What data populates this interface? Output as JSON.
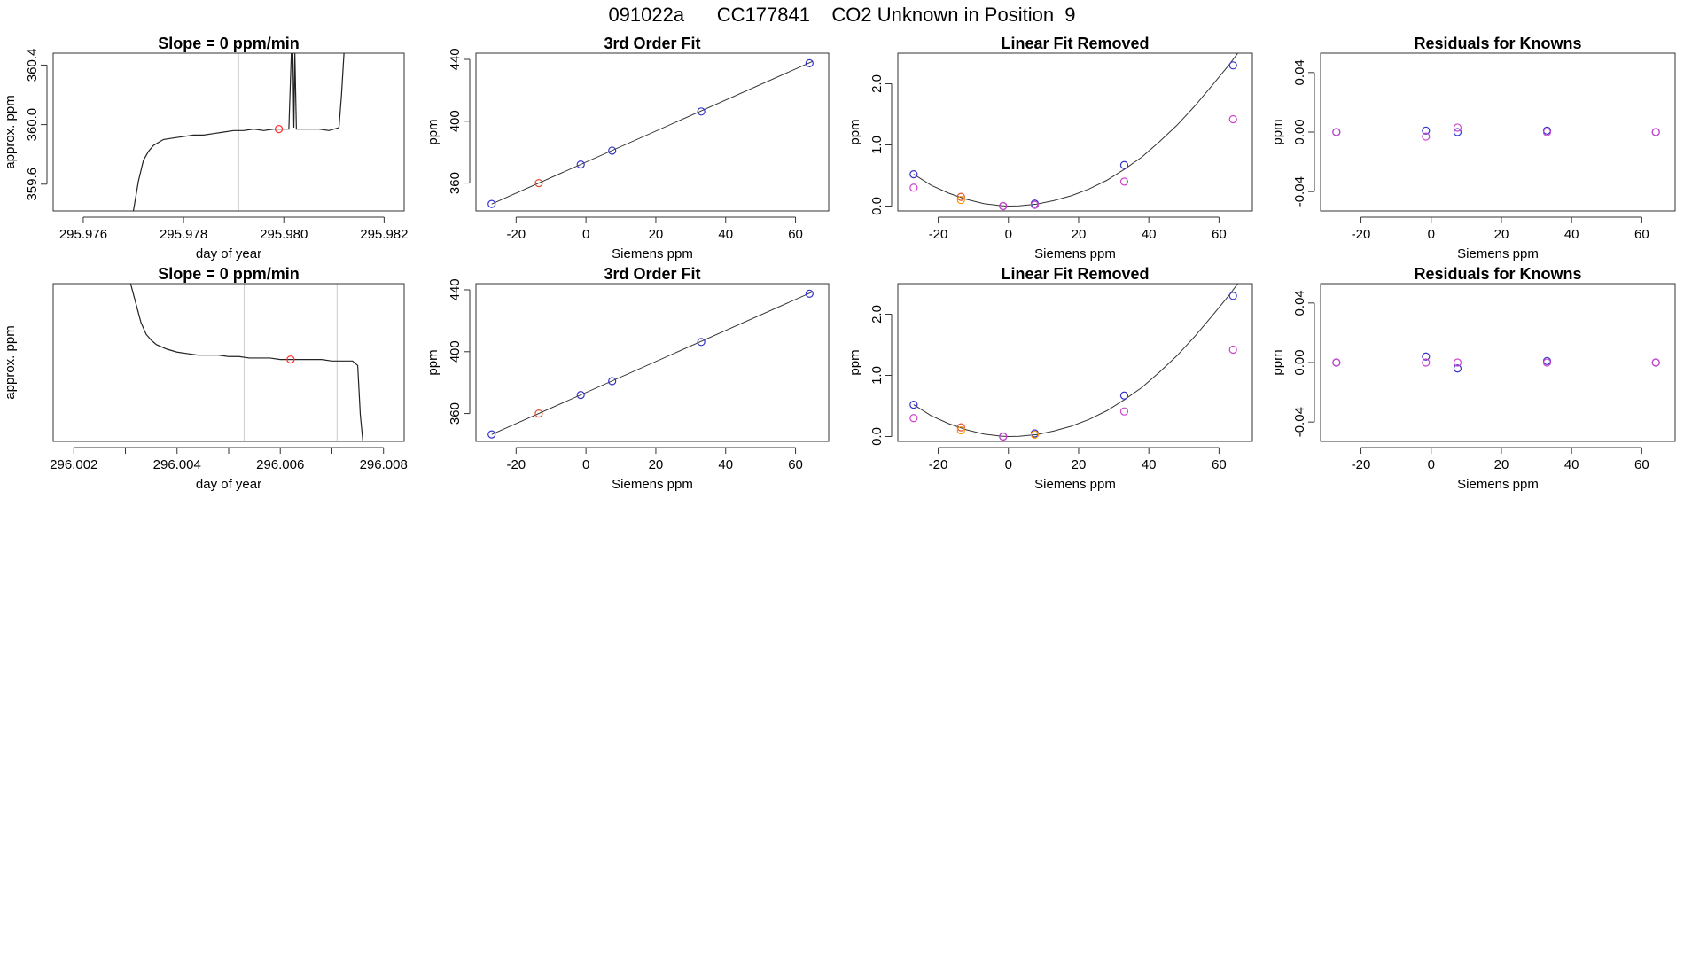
{
  "page": {
    "title": "091022a      CC177841    CO2 Unknown in Position  9"
  },
  "chart_data": [
    {
      "panel": "row1-time",
      "type": "line",
      "title": "Slope =  0  ppm/min",
      "xlabel": "day of year",
      "ylabel": "approx. ppm",
      "xlim": [
        295.9754,
        295.9824
      ],
      "ylim": [
        359.42,
        360.48
      ],
      "xticks": [
        295.976,
        295.978,
        295.98,
        295.982
      ],
      "xtick_labels": [
        "295.976",
        "295.978",
        "295.980",
        "295.982"
      ],
      "yticks": [
        359.6,
        360.0,
        360.4
      ],
      "ytick_labels": [
        "359.6",
        "360.0",
        "360.4"
      ],
      "vlines": [
        295.9791,
        295.9808
      ],
      "marker": {
        "x": 295.9799,
        "y": 359.97,
        "color": "#ff3333"
      },
      "trace": {
        "x": [
          295.977,
          295.9771,
          295.9772,
          295.9773,
          295.9774,
          295.9775,
          295.9776,
          295.9778,
          295.978,
          295.9782,
          295.9784,
          295.9786,
          295.9788,
          295.979,
          295.9792,
          295.9794,
          295.9796,
          295.9798,
          295.98,
          295.9801,
          295.98015,
          295.98018,
          295.9802,
          295.98022,
          295.98025,
          295.9803,
          295.9805,
          295.9807,
          295.9809,
          295.981,
          295.9811,
          295.98115,
          295.9812
        ],
        "y": [
          359.42,
          359.62,
          359.76,
          359.82,
          359.86,
          359.88,
          359.9,
          359.91,
          359.92,
          359.93,
          359.93,
          359.94,
          359.95,
          359.96,
          359.96,
          359.97,
          359.96,
          359.97,
          359.97,
          359.97,
          360.48,
          360.48,
          359.98,
          360.48,
          359.97,
          359.97,
          359.97,
          359.97,
          359.96,
          359.97,
          359.98,
          360.2,
          360.48
        ]
      }
    },
    {
      "panel": "row1-fit",
      "type": "scatter",
      "title": "3rd Order Fit",
      "xlabel": "Siemens ppm",
      "ylabel": "ppm",
      "xlim": [
        -31.5,
        69.5
      ],
      "ylim": [
        342,
        444
      ],
      "xticks": [
        -20,
        0,
        20,
        40,
        60
      ],
      "xtick_labels": [
        "-20",
        "0",
        "20",
        "40",
        "60"
      ],
      "yticks": [
        360,
        400,
        440
      ],
      "ytick_labels": [
        "360",
        "400",
        "440"
      ],
      "fit_line": {
        "x": [
          -27,
          65
        ],
        "y": [
          346.5,
          438.8
        ]
      },
      "points": [
        {
          "x": -27,
          "y": 346.5,
          "color": "#3333cc"
        },
        {
          "x": -13.5,
          "y": 360.0,
          "color": "#e05030"
        },
        {
          "x": -1.5,
          "y": 372.0,
          "color": "#3333cc"
        },
        {
          "x": 7.5,
          "y": 381.0,
          "color": "#3333cc"
        },
        {
          "x": 33,
          "y": 406.3,
          "color": "#3333cc"
        },
        {
          "x": 64,
          "y": 437.5,
          "color": "#3333cc"
        }
      ]
    },
    {
      "panel": "row1-linear-removed",
      "type": "scatter",
      "title": "Linear Fit Removed",
      "xlabel": "Siemens ppm",
      "ylabel": "ppm",
      "xlim": [
        -31.5,
        69.5
      ],
      "ylim": [
        -0.08,
        2.5
      ],
      "xticks": [
        -20,
        0,
        20,
        40,
        60
      ],
      "xtick_labels": [
        "-20",
        "0",
        "20",
        "40",
        "60"
      ],
      "yticks": [
        0.0,
        1.0,
        2.0
      ],
      "ytick_labels": [
        "0.0",
        "1.0",
        "2.0"
      ],
      "curve": {
        "x": [
          -27,
          -22,
          -17,
          -12,
          -7,
          -2,
          0,
          3,
          8,
          13,
          18,
          23,
          28,
          33,
          38,
          43,
          48,
          53,
          58,
          63,
          66
        ],
        "y": [
          0.52,
          0.34,
          0.21,
          0.11,
          0.04,
          0.005,
          0.0,
          0.003,
          0.03,
          0.09,
          0.17,
          0.28,
          0.42,
          0.6,
          0.8,
          1.05,
          1.32,
          1.63,
          1.97,
          2.32,
          2.55
        ]
      },
      "points": [
        {
          "x": -27,
          "y": 0.52,
          "color": "#3333cc"
        },
        {
          "x": -27,
          "y": 0.3,
          "color": "#cc44cc"
        },
        {
          "x": -13.5,
          "y": 0.15,
          "color": "#e05030"
        },
        {
          "x": -13.5,
          "y": 0.1,
          "color": "#ff9900"
        },
        {
          "x": -1.5,
          "y": 0.0,
          "color": "#3333cc"
        },
        {
          "x": -1.5,
          "y": 0.0,
          "color": "#cc44cc"
        },
        {
          "x": 7.5,
          "y": 0.04,
          "color": "#3333cc"
        },
        {
          "x": 7.5,
          "y": 0.02,
          "color": "#cc44cc"
        },
        {
          "x": 33,
          "y": 0.67,
          "color": "#3333cc"
        },
        {
          "x": 33,
          "y": 0.4,
          "color": "#cc44cc"
        },
        {
          "x": 64,
          "y": 2.3,
          "color": "#3333cc"
        },
        {
          "x": 64,
          "y": 1.42,
          "color": "#cc44cc"
        }
      ]
    },
    {
      "panel": "row1-residuals",
      "type": "scatter",
      "title": "Residuals for Knowns",
      "xlabel": "Siemens ppm",
      "ylabel": "ppm",
      "xlim": [
        -31.5,
        69.5
      ],
      "ylim": [
        -0.053,
        0.053
      ],
      "xticks": [
        -20,
        0,
        20,
        40,
        60
      ],
      "xtick_labels": [
        "-20",
        "0",
        "20",
        "40",
        "60"
      ],
      "yticks": [
        -0.04,
        0.0,
        0.04
      ],
      "ytick_labels": [
        "-0.04",
        "0.00",
        "0.04"
      ],
      "points": [
        {
          "x": -27,
          "y": 0.0,
          "color": "#3333cc"
        },
        {
          "x": -27,
          "y": 0.0,
          "color": "#cc44cc"
        },
        {
          "x": -1.5,
          "y": 0.001,
          "color": "#3333cc"
        },
        {
          "x": -1.5,
          "y": -0.003,
          "color": "#cc44cc"
        },
        {
          "x": 7.5,
          "y": 0.0,
          "color": "#3333cc"
        },
        {
          "x": 7.5,
          "y": 0.003,
          "color": "#cc44cc"
        },
        {
          "x": 33,
          "y": 0.001,
          "color": "#3333cc"
        },
        {
          "x": 33,
          "y": 0.0,
          "color": "#cc44cc"
        },
        {
          "x": 64,
          "y": 0.0,
          "color": "#3333cc"
        },
        {
          "x": 64,
          "y": 0.0,
          "color": "#cc44cc"
        }
      ]
    },
    {
      "panel": "row2-time",
      "type": "line",
      "title": "Slope =  0  ppm/min",
      "xlabel": "day of year",
      "ylabel": "approx. ppm",
      "xlim": [
        296.0016,
        296.0084
      ],
      "ylim": [
        359.42,
        360.48
      ],
      "xticks": [
        296.002,
        296.004,
        296.006,
        296.008
      ],
      "xtick_labels": [
        "296.002",
        "296.004",
        "296.006",
        "296.008"
      ],
      "minor_xticks": [
        296.003,
        296.005,
        296.007
      ],
      "vlines": [
        296.0053,
        296.0071
      ],
      "marker": {
        "x": 296.0062,
        "y": 359.97,
        "color": "#ff3333"
      },
      "trace": {
        "x": [
          296.0031,
          296.0032,
          296.0033,
          296.0034,
          296.0035,
          296.0036,
          296.0038,
          296.004,
          296.0042,
          296.0044,
          296.0046,
          296.0048,
          296.005,
          296.0052,
          296.0054,
          296.0056,
          296.0058,
          296.006,
          296.0062,
          296.0064,
          296.0066,
          296.0068,
          296.007,
          296.0072,
          296.0074,
          296.0075,
          296.00755,
          296.0076
        ],
        "y": [
          360.48,
          360.35,
          360.22,
          360.14,
          360.1,
          360.07,
          360.04,
          360.02,
          360.01,
          360.0,
          360.0,
          360.0,
          359.99,
          359.99,
          359.98,
          359.98,
          359.98,
          359.97,
          359.97,
          359.97,
          359.97,
          359.97,
          359.96,
          359.96,
          359.96,
          359.93,
          359.6,
          359.42
        ]
      }
    },
    {
      "panel": "row2-fit",
      "type": "scatter",
      "title": "3rd Order Fit",
      "xlabel": "Siemens ppm",
      "ylabel": "ppm",
      "xlim": [
        -31.5,
        69.5
      ],
      "ylim": [
        342,
        444
      ],
      "xticks": [
        -20,
        0,
        20,
        40,
        60
      ],
      "xtick_labels": [
        "-20",
        "0",
        "20",
        "40",
        "60"
      ],
      "yticks": [
        360,
        400,
        440
      ],
      "ytick_labels": [
        "360",
        "400",
        "440"
      ],
      "fit_line": {
        "x": [
          -27,
          65
        ],
        "y": [
          346.5,
          438.8
        ]
      },
      "points": [
        {
          "x": -27,
          "y": 346.5,
          "color": "#3333cc"
        },
        {
          "x": -13.5,
          "y": 360.0,
          "color": "#e05030"
        },
        {
          "x": -1.5,
          "y": 372.0,
          "color": "#3333cc"
        },
        {
          "x": 7.5,
          "y": 381.0,
          "color": "#3333cc"
        },
        {
          "x": 33,
          "y": 406.3,
          "color": "#3333cc"
        },
        {
          "x": 64,
          "y": 437.5,
          "color": "#3333cc"
        }
      ]
    },
    {
      "panel": "row2-linear-removed",
      "type": "scatter",
      "title": "Linear Fit Removed",
      "xlabel": "Siemens ppm",
      "ylabel": "ppm",
      "xlim": [
        -31.5,
        69.5
      ],
      "ylim": [
        -0.08,
        2.5
      ],
      "xticks": [
        -20,
        0,
        20,
        40,
        60
      ],
      "xtick_labels": [
        "-20",
        "0",
        "20",
        "40",
        "60"
      ],
      "yticks": [
        0.0,
        1.0,
        2.0
      ],
      "ytick_labels": [
        "0.0",
        "1.0",
        "2.0"
      ],
      "curve": {
        "x": [
          -27,
          -22,
          -17,
          -12,
          -7,
          -2,
          0,
          3,
          8,
          13,
          18,
          23,
          28,
          33,
          38,
          43,
          48,
          53,
          58,
          63,
          66
        ],
        "y": [
          0.52,
          0.34,
          0.21,
          0.11,
          0.04,
          0.005,
          0.0,
          0.003,
          0.03,
          0.09,
          0.17,
          0.28,
          0.42,
          0.6,
          0.8,
          1.05,
          1.32,
          1.63,
          1.97,
          2.32,
          2.55
        ]
      },
      "points": [
        {
          "x": -27,
          "y": 0.52,
          "color": "#3333cc"
        },
        {
          "x": -27,
          "y": 0.3,
          "color": "#cc44cc"
        },
        {
          "x": -13.5,
          "y": 0.15,
          "color": "#e05030"
        },
        {
          "x": -13.5,
          "y": 0.1,
          "color": "#ff9900"
        },
        {
          "x": -1.5,
          "y": 0.0,
          "color": "#3333cc"
        },
        {
          "x": -1.5,
          "y": 0.0,
          "color": "#cc44cc"
        },
        {
          "x": 7.5,
          "y": 0.05,
          "color": "#3333cc"
        },
        {
          "x": 7.5,
          "y": 0.03,
          "color": "#ff9900"
        },
        {
          "x": 33,
          "y": 0.67,
          "color": "#3333cc"
        },
        {
          "x": 33,
          "y": 0.41,
          "color": "#cc44cc"
        },
        {
          "x": 64,
          "y": 2.3,
          "color": "#3333cc"
        },
        {
          "x": 64,
          "y": 1.42,
          "color": "#cc44cc"
        }
      ]
    },
    {
      "panel": "row2-residuals",
      "type": "scatter",
      "title": "Residuals for Knowns",
      "xlabel": "Siemens ppm",
      "ylabel": "ppm",
      "xlim": [
        -31.5,
        69.5
      ],
      "ylim": [
        -0.053,
        0.053
      ],
      "xticks": [
        -20,
        0,
        20,
        40,
        60
      ],
      "xtick_labels": [
        "-20",
        "0",
        "20",
        "40",
        "60"
      ],
      "yticks": [
        -0.04,
        0.0,
        0.04
      ],
      "ytick_labels": [
        "-0.04",
        "0.00",
        "0.04"
      ],
      "points": [
        {
          "x": -27,
          "y": 0.0,
          "color": "#3333cc"
        },
        {
          "x": -27,
          "y": 0.0,
          "color": "#cc44cc"
        },
        {
          "x": -1.5,
          "y": 0.004,
          "color": "#3333cc"
        },
        {
          "x": -1.5,
          "y": 0.0,
          "color": "#cc44cc"
        },
        {
          "x": 7.5,
          "y": -0.004,
          "color": "#3333cc"
        },
        {
          "x": 7.5,
          "y": 0.0,
          "color": "#cc44cc"
        },
        {
          "x": 33,
          "y": 0.001,
          "color": "#3333cc"
        },
        {
          "x": 33,
          "y": 0.0,
          "color": "#cc44cc"
        },
        {
          "x": 64,
          "y": 0.0,
          "color": "#3333cc"
        },
        {
          "x": 64,
          "y": 0.0,
          "color": "#cc44cc"
        }
      ]
    }
  ]
}
